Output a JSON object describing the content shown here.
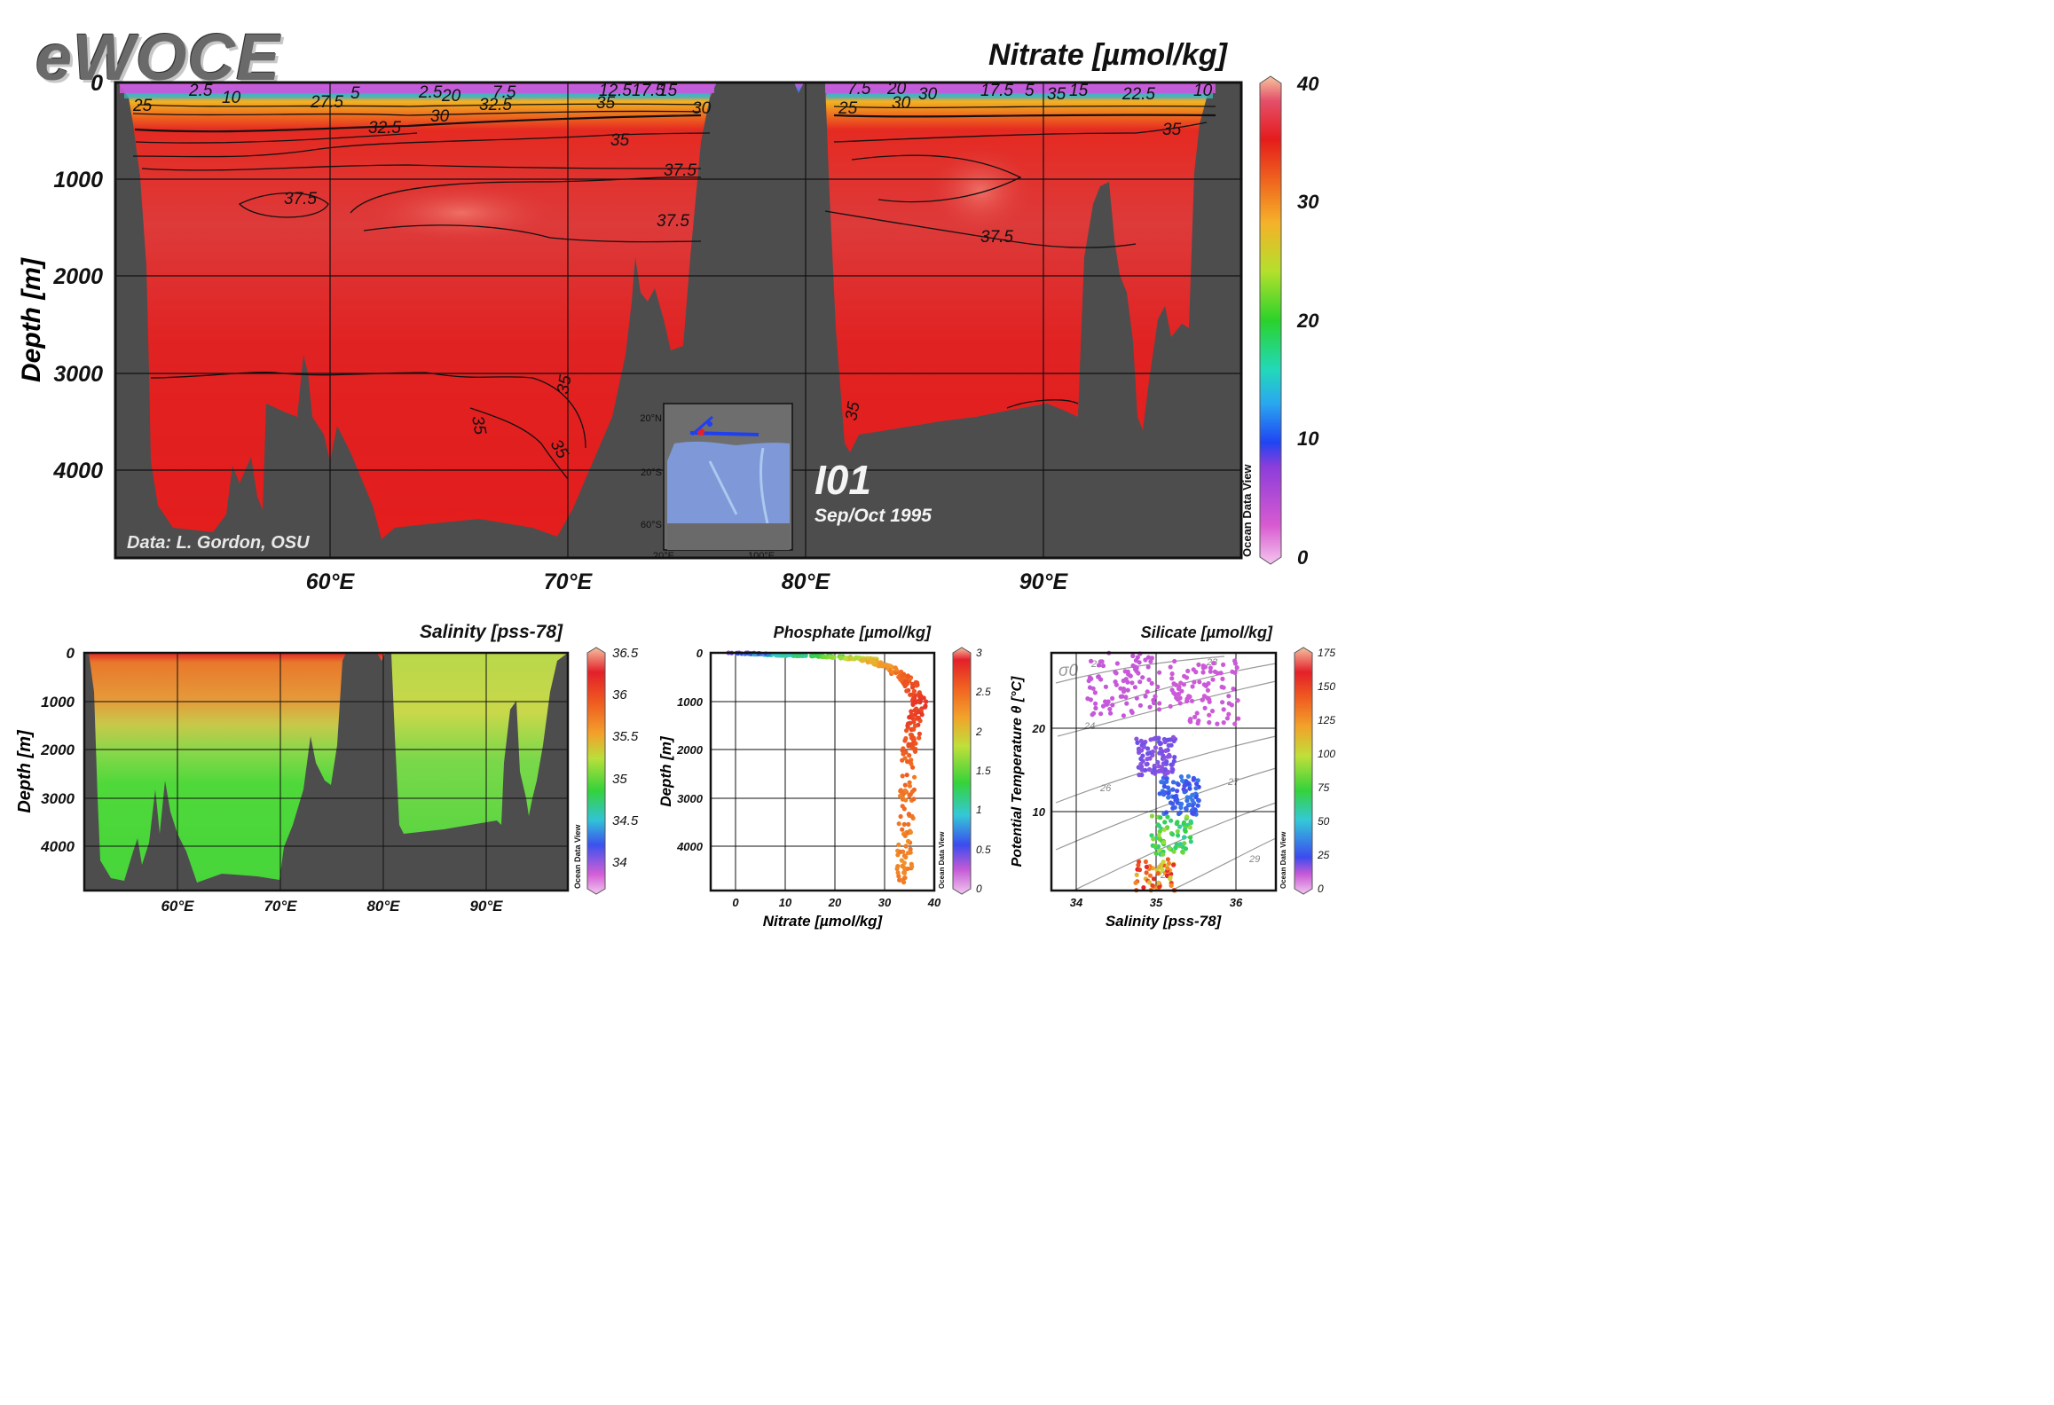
{
  "logo": "eWOCE",
  "chart_data": [
    {
      "type": "heatmap",
      "title": "Nitrate [µmol/kg]",
      "ylabel": "Depth [m]",
      "x_ticks": [
        "60°E",
        "70°E",
        "80°E",
        "90°E"
      ],
      "x_tick_values": [
        60,
        70,
        80,
        90
      ],
      "xlim": [
        51,
        98
      ],
      "y_ticks": [
        "0",
        "1000",
        "2000",
        "3000",
        "4000"
      ],
      "y_tick_values": [
        0,
        1000,
        2000,
        3000,
        4000
      ],
      "ylim": [
        0,
        4900
      ],
      "colorbar": {
        "ticks": [
          "0",
          "10",
          "20",
          "30",
          "40"
        ],
        "tick_values": [
          0,
          10,
          20,
          30,
          40
        ],
        "range": [
          0,
          40
        ]
      },
      "contour_labels": [
        "2.5",
        "5",
        "7.5",
        "10",
        "12.5",
        "15",
        "17.5",
        "20",
        "22.5",
        "25",
        "27.5",
        "30",
        "32.5",
        "35",
        "37.5"
      ],
      "credit": "Data: L. Gordon, OSU",
      "section": "I01",
      "date": "Sep/Oct 1995",
      "inset_map": {
        "lat_labels": [
          "20°N",
          "20°S",
          "60°S"
        ],
        "lon_labels": [
          "20°E",
          "100°E"
        ]
      },
      "watermark": "Ocean Data View",
      "grid": true
    },
    {
      "type": "heatmap",
      "title": "Salinity [pss-78]",
      "ylabel": "Depth [m]",
      "x_ticks": [
        "60°E",
        "70°E",
        "80°E",
        "90°E"
      ],
      "x_tick_values": [
        60,
        70,
        80,
        90
      ],
      "y_ticks": [
        "0",
        "1000",
        "2000",
        "3000",
        "4000"
      ],
      "y_tick_values": [
        0,
        1000,
        2000,
        3000,
        4000
      ],
      "colorbar": {
        "ticks": [
          "34",
          "34.5",
          "35",
          "35.5",
          "36",
          "36.5"
        ],
        "tick_values": [
          34,
          34.5,
          35,
          35.5,
          36,
          36.5
        ],
        "range": [
          33.7,
          36.5
        ]
      },
      "watermark": "Ocean Data View",
      "grid": true
    },
    {
      "type": "scatter",
      "title": "Phosphate [µmol/kg]",
      "xlabel": "Nitrate [µmol/kg]",
      "ylabel": "Depth [m]",
      "x_ticks": [
        "0",
        "10",
        "20",
        "30",
        "40"
      ],
      "x_tick_values": [
        0,
        10,
        20,
        30,
        40
      ],
      "y_ticks": [
        "0",
        "1000",
        "2000",
        "3000",
        "4000"
      ],
      "y_tick_values": [
        0,
        1000,
        2000,
        3000,
        4000
      ],
      "xlim": [
        -5,
        40
      ],
      "ylim": [
        0,
        4900
      ],
      "colorbar": {
        "ticks": [
          "0",
          "0.5",
          "1",
          "1.5",
          "2",
          "2.5",
          "3"
        ],
        "tick_values": [
          0,
          0.5,
          1,
          1.5,
          2,
          2.5,
          3
        ],
        "range": [
          0,
          3
        ]
      },
      "profile": [
        {
          "depth": 0,
          "nitrate": 0,
          "phosphate": 0.3
        },
        {
          "depth": 50,
          "nitrate": 10,
          "phosphate": 1.0
        },
        {
          "depth": 80,
          "nitrate": 20,
          "phosphate": 1.5
        },
        {
          "depth": 130,
          "nitrate": 26,
          "phosphate": 2.0
        },
        {
          "depth": 300,
          "nitrate": 31,
          "phosphate": 2.3
        },
        {
          "depth": 600,
          "nitrate": 35,
          "phosphate": 2.6
        },
        {
          "depth": 1000,
          "nitrate": 37,
          "phosphate": 2.8
        },
        {
          "depth": 1500,
          "nitrate": 36,
          "phosphate": 2.7
        },
        {
          "depth": 2000,
          "nitrate": 35,
          "phosphate": 2.55
        },
        {
          "depth": 3000,
          "nitrate": 34.5,
          "phosphate": 2.4
        },
        {
          "depth": 4000,
          "nitrate": 34,
          "phosphate": 2.35
        },
        {
          "depth": 4800,
          "nitrate": 34,
          "phosphate": 2.3
        }
      ],
      "watermark": "Ocean Data View",
      "grid": true
    },
    {
      "type": "scatter",
      "title": "Silicate [µmol/kg]",
      "xlabel": "Salinity [pss-78]",
      "ylabel": "Potential Temperature θ [°C]",
      "x_ticks": [
        "34",
        "35",
        "36"
      ],
      "x_tick_values": [
        34,
        35,
        36
      ],
      "y_ticks": [
        "10",
        "20"
      ],
      "y_tick_values": [
        10,
        20
      ],
      "xlim": [
        33.7,
        36.5
      ],
      "ylim": [
        0,
        30
      ],
      "sigma_label": "σ0",
      "isopycnal_labels": [
        "22",
        "23",
        "24",
        "26",
        "27",
        "28",
        "29"
      ],
      "colorbar": {
        "ticks": [
          "0",
          "25",
          "50",
          "75",
          "100",
          "125",
          "150",
          "175"
        ],
        "tick_values": [
          0,
          25,
          50,
          75,
          100,
          125,
          150,
          175
        ],
        "range": [
          0,
          175
        ]
      },
      "clusters": [
        {
          "s": 35.0,
          "t": 1.5,
          "silicate": 140
        },
        {
          "s": 35.2,
          "t": 7,
          "silicate": 80
        },
        {
          "s": 35.3,
          "t": 12,
          "silicate": 30
        },
        {
          "s": 35.0,
          "t": 17,
          "silicate": 15
        },
        {
          "s": 34.6,
          "t": 26,
          "silicate": 3
        },
        {
          "s": 35.6,
          "t": 25,
          "silicate": 2
        }
      ],
      "watermark": "Ocean Data View",
      "grid": true
    }
  ]
}
